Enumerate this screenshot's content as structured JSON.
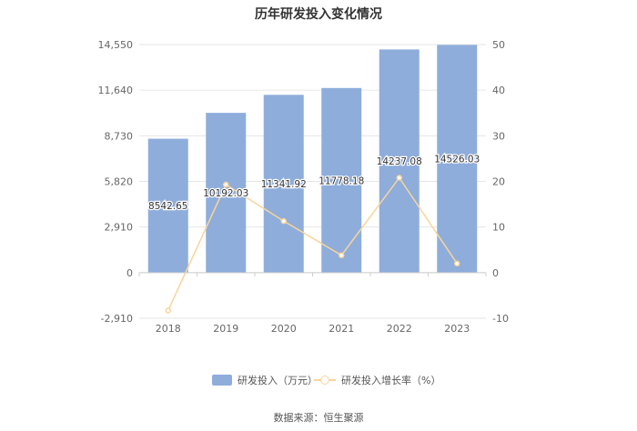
{
  "chart_data": {
    "type": "bar",
    "title": "历年研发投入变化情况",
    "categories": [
      "2018",
      "2019",
      "2020",
      "2021",
      "2022",
      "2023"
    ],
    "series": [
      {
        "name": "研发投入（万元）",
        "type": "bar",
        "axis": "left",
        "values": [
          8542.65,
          10192.03,
          11341.92,
          11778.18,
          14237.08,
          14526.03
        ],
        "labels": [
          "8542.65",
          "10192.03",
          "11341.92",
          "11778.18",
          "14237.08",
          "14526.03"
        ]
      },
      {
        "name": "研发投入增长率（%）",
        "type": "line",
        "axis": "right",
        "values": [
          -8.3,
          19.3,
          11.3,
          3.8,
          20.8,
          2.0
        ]
      }
    ],
    "y_left": {
      "ylim": [
        -2910,
        14550
      ],
      "ticks": [
        "14,550",
        "11,640",
        "8,730",
        "5,820",
        "2,910",
        "0",
        "-2,910"
      ]
    },
    "y_right": {
      "ylim": [
        -10,
        50
      ],
      "ticks": [
        "50",
        "40",
        "30",
        "20",
        "10",
        "0",
        "-10"
      ]
    },
    "grid": true,
    "legend_position": "bottom",
    "colors": {
      "bar": "#8EADDB",
      "line": "#FAD49A",
      "grid": "#E6E6E6",
      "axis_text": "#666666"
    }
  },
  "source": "数据来源：恒生聚源"
}
